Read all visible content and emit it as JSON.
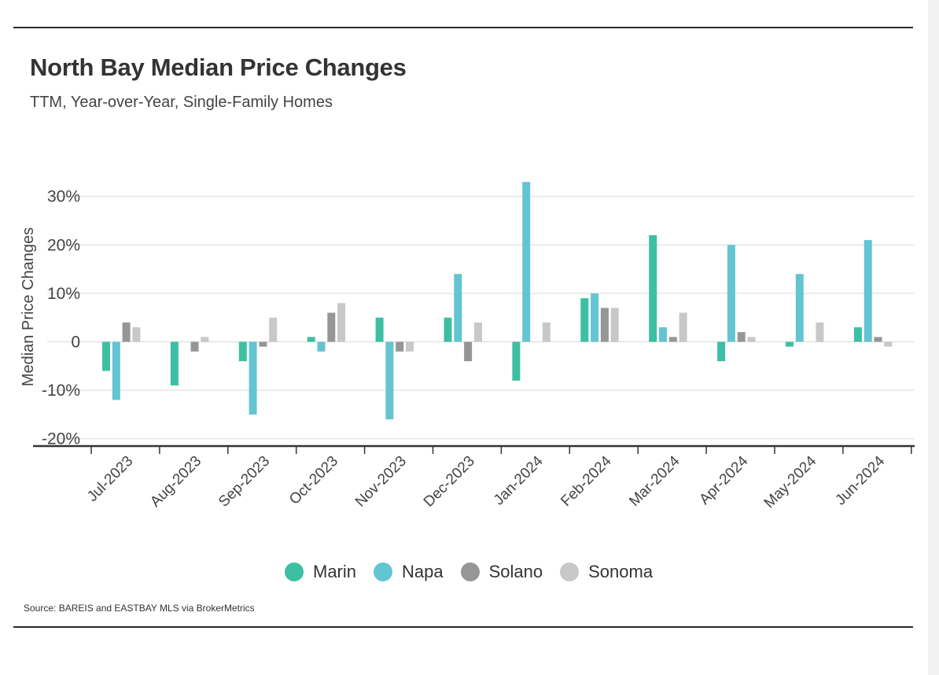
{
  "header": {
    "title": "North Bay Median Price Changes",
    "subtitle": "TTM, Year-over-Year, Single-Family Homes"
  },
  "footer": {
    "source": "Source:  BAREIS and EASTBAY MLS via BrokerMetrics"
  },
  "colors": {
    "Marin": "#3dbfa3",
    "Napa": "#63c5d1",
    "Solano": "#969696",
    "Sonoma": "#c8c8c8"
  },
  "chart_data": {
    "type": "bar",
    "title": "North Bay Median Price Changes",
    "subtitle": "TTM, Year-over-Year, Single-Family Homes",
    "xlabel": "",
    "ylabel": "Median Price Changes",
    "ylim": [
      -20,
      30
    ],
    "yticks": [
      {
        "value": 30,
        "label": "30%"
      },
      {
        "value": 20,
        "label": "20%"
      },
      {
        "value": 10,
        "label": "10%"
      },
      {
        "value": 0,
        "label": "0"
      },
      {
        "value": -10,
        "label": "-10%"
      },
      {
        "value": -20,
        "label": "-20%"
      }
    ],
    "grid": true,
    "legend": "bottom",
    "categories": [
      "Jul-2023",
      "Aug-2023",
      "Sep-2023",
      "Oct-2023",
      "Nov-2023",
      "Dec-2023",
      "Jan-2024",
      "Feb-2024",
      "Mar-2024",
      "Apr-2024",
      "May-2024",
      "Jun-2024"
    ],
    "series": [
      {
        "name": "Marin",
        "values": [
          -6,
          -9,
          -4,
          1,
          5,
          5,
          -8,
          9,
          22,
          -4,
          -1,
          3
        ]
      },
      {
        "name": "Napa",
        "values": [
          -12,
          0,
          -15,
          -2,
          -16,
          14,
          33,
          10,
          3,
          20,
          14,
          21
        ]
      },
      {
        "name": "Solano",
        "values": [
          4,
          -2,
          -1,
          6,
          -2,
          -4,
          0,
          7,
          1,
          2,
          0,
          1
        ]
      },
      {
        "name": "Sonoma",
        "values": [
          3,
          1,
          5,
          8,
          -2,
          4,
          4,
          7,
          6,
          1,
          4,
          -1
        ]
      }
    ]
  }
}
